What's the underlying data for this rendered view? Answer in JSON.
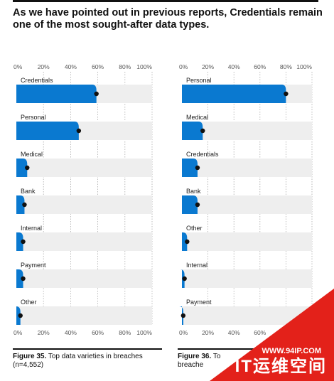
{
  "headline": {
    "line1": "As we have pointed out in previous reports, Credentials remain",
    "line2": "one of the most sought-after data types."
  },
  "chart_data": [
    {
      "type": "bar",
      "orientation": "horizontal",
      "categories": [
        "Credentials",
        "Personal",
        "Medical",
        "Bank",
        "Internal",
        "Payment",
        "Other"
      ],
      "values": [
        59,
        46,
        8,
        6,
        5,
        5,
        3
      ],
      "xlim": [
        0,
        100
      ],
      "tick_labels": [
        "0%",
        "20%",
        "40%",
        "60%",
        "80%",
        "100%"
      ],
      "caption_bold": "Figure 35.",
      "caption_text": " Top data varieties in breaches",
      "caption_text2": "(n=4,552)"
    },
    {
      "type": "bar",
      "orientation": "horizontal",
      "categories": [
        "Personal",
        "Medical",
        "Credentials",
        "Bank",
        "Other",
        "Internal",
        "Payment"
      ],
      "values": [
        80,
        16,
        12,
        12,
        4,
        2,
        1
      ],
      "xlim": [
        0,
        100
      ],
      "tick_labels": [
        "0%",
        "20%",
        "40%",
        "60%",
        "80%",
        "100%"
      ],
      "caption_bold": "Figure 36.",
      "caption_text": " To",
      "caption_text2": "breache"
    }
  ],
  "watermark": {
    "url": "WWW.94IP.COM",
    "name": "IT运维空间",
    "color": "#e3211a"
  },
  "colors": {
    "bar": "#0a79d0",
    "track": "#eeeeee",
    "dot": "#111111"
  }
}
